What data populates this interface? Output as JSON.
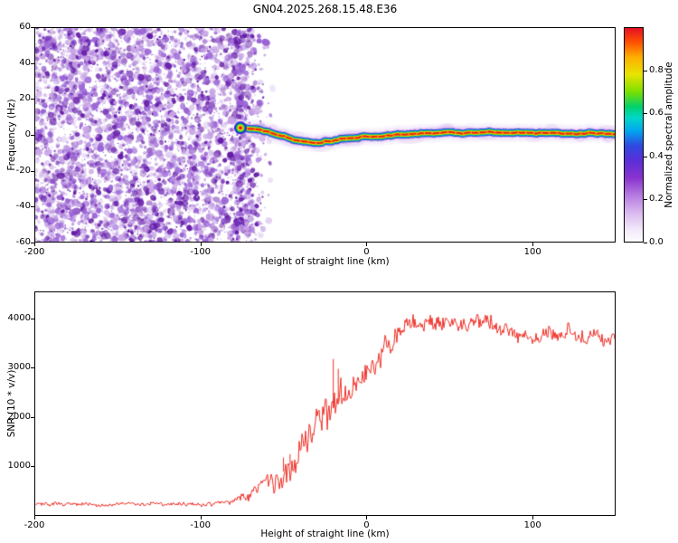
{
  "title": "GN04.2025.268.15.48.E36",
  "chart_data": [
    {
      "type": "heatmap",
      "name": "doppler-spectrogram",
      "title": "GN04.2025.268.15.48.E36",
      "xlabel": "Height of straight line (km)",
      "ylabel": "Frequency (Hz)",
      "xlim": [
        -200,
        150
      ],
      "ylim": [
        -60,
        60
      ],
      "xticks": [
        -200,
        -100,
        0,
        100
      ],
      "yticks": [
        -60,
        -40,
        -20,
        0,
        20,
        40,
        60
      ],
      "grid": false,
      "colorbar": {
        "label": "Normalized spectral amplitude",
        "tick_values": [
          0,
          0.2,
          0.4,
          0.6,
          0.8
        ],
        "tick_labels": [
          "0.0",
          "0.2",
          "0.4",
          "0.6",
          "0.8"
        ],
        "range": [
          0,
          1
        ],
        "stops": [
          [
            0.0,
            "#ffffff"
          ],
          [
            0.06,
            "#f3e9fa"
          ],
          [
            0.14,
            "#d9b8ef"
          ],
          [
            0.22,
            "#b57ae0"
          ],
          [
            0.3,
            "#8a33cf"
          ],
          [
            0.38,
            "#5b2fd8"
          ],
          [
            0.45,
            "#2f4ae0"
          ],
          [
            0.52,
            "#00a8f0"
          ],
          [
            0.58,
            "#00d8c8"
          ],
          [
            0.63,
            "#00d26e"
          ],
          [
            0.7,
            "#7ce000"
          ],
          [
            0.78,
            "#e8e400"
          ],
          [
            0.86,
            "#ffb000"
          ],
          [
            0.93,
            "#ff5000"
          ],
          [
            1.0,
            "#e40c28"
          ]
        ]
      },
      "noise_field": {
        "x_range": [
          -200,
          -78
        ],
        "fade_x_range": [
          -78,
          -56
        ],
        "freq_range": [
          -60,
          60
        ],
        "amplitude_range": [
          0,
          0.35
        ],
        "dots": 4500,
        "fade_dots": 700,
        "dot_colors": [
          "#c9a6e6",
          "#9a63d6",
          "#641ba8"
        ]
      },
      "signal_trace": {
        "x_start": -76,
        "x_end": 150,
        "path": [
          [
            -76,
            4
          ],
          [
            -72,
            3.5
          ],
          [
            -68,
            3.2
          ],
          [
            -64,
            2.6
          ],
          [
            -60,
            1.8
          ],
          [
            -56,
            0.8
          ],
          [
            -52,
            -0.4
          ],
          [
            -48,
            -1.6
          ],
          [
            -44,
            -2.6
          ],
          [
            -40,
            -3.4
          ],
          [
            -36,
            -3.9
          ],
          [
            -32,
            -4
          ],
          [
            -28,
            -3.7
          ],
          [
            -24,
            -3.1
          ],
          [
            -20,
            -2.6
          ],
          [
            -16,
            -2.2
          ],
          [
            -12,
            -2
          ],
          [
            -8,
            -1.8
          ],
          [
            -4,
            -1.5
          ],
          [
            0,
            -1.2
          ],
          [
            4,
            -0.9
          ],
          [
            8,
            -0.6
          ],
          [
            12,
            -0.3
          ],
          [
            16,
            0
          ],
          [
            20,
            0.3
          ],
          [
            25,
            0.6
          ],
          [
            30,
            0.9
          ],
          [
            35,
            1
          ],
          [
            45,
            1.2
          ],
          [
            55,
            1
          ],
          [
            65,
            1.1
          ],
          [
            75,
            1.2
          ],
          [
            85,
            1
          ],
          [
            95,
            1.1
          ],
          [
            105,
            1
          ],
          [
            115,
            1.1
          ],
          [
            125,
            1
          ],
          [
            135,
            1.1
          ],
          [
            150,
            1
          ]
        ],
        "layers": [
          [
            "#ead2f8",
            15,
            0.3
          ],
          [
            "#c08ae8",
            10.5,
            0.5
          ],
          [
            "#2b2bd4",
            8.2,
            0.95
          ],
          [
            "#00a8e8",
            6.6,
            1
          ],
          [
            "#00cc55",
            5.2,
            1
          ],
          [
            "#9ce000",
            4.2,
            1
          ],
          [
            "#ffd800",
            3.3,
            1
          ],
          [
            "#ff8800",
            2.5,
            1
          ],
          [
            "#e61e14",
            1.7,
            1
          ]
        ],
        "halo_color": "#d8bdf2",
        "blob_color": "#c9a2e8",
        "blob_count": 34
      }
    },
    {
      "type": "line",
      "name": "snr-profile",
      "xlabel": "Height of straight line (km)",
      "ylabel": "SNR (10 * v/v)",
      "xlim": [
        -200,
        150
      ],
      "ylim": [
        0,
        4550
      ],
      "xticks": [
        -200,
        -100,
        0,
        100
      ],
      "yticks": [
        1000,
        2000,
        3000,
        4000
      ],
      "grid": false,
      "series": [
        {
          "name": "SNR",
          "color": "#f03028",
          "points": [
            [
              -200,
              240,
              55
            ],
            [
              -180,
              235,
              55
            ],
            [
              -160,
              240,
              55
            ],
            [
              -140,
              235,
              55
            ],
            [
              -120,
              245,
              55
            ],
            [
              -100,
              240,
              60
            ],
            [
              -90,
              235,
              60
            ],
            [
              -82,
              240,
              70
            ],
            [
              -76,
              330,
              160
            ],
            [
              -72,
              290,
              130
            ],
            [
              -68,
              420,
              180
            ],
            [
              -64,
              520,
              220
            ],
            [
              -60,
              600,
              260
            ],
            [
              -56,
              720,
              280
            ],
            [
              -52,
              850,
              320
            ],
            [
              -48,
              950,
              340
            ],
            [
              -44,
              1120,
              360
            ],
            [
              -40,
              1380,
              400
            ],
            [
              -36,
              1560,
              420
            ],
            [
              -32,
              1700,
              440
            ],
            [
              -28,
              1840,
              470
            ],
            [
              -24,
              1980,
              520
            ],
            [
              -20,
              2180,
              520
            ],
            [
              -16,
              2380,
              470
            ],
            [
              -12,
              2520,
              420
            ],
            [
              -8,
              2650,
              380
            ],
            [
              -4,
              2760,
              360
            ],
            [
              0,
              2880,
              360
            ],
            [
              4,
              3060,
              360
            ],
            [
              8,
              3240,
              330
            ],
            [
              12,
              3420,
              320
            ],
            [
              16,
              3620,
              300
            ],
            [
              20,
              3790,
              280
            ],
            [
              24,
              3930,
              260
            ],
            [
              28,
              4010,
              260
            ],
            [
              34,
              4000,
              260
            ],
            [
              40,
              3960,
              260
            ],
            [
              48,
              3900,
              260
            ],
            [
              56,
              3880,
              260
            ],
            [
              64,
              3900,
              260
            ],
            [
              72,
              3860,
              250
            ],
            [
              80,
              3800,
              250
            ],
            [
              88,
              3720,
              230
            ],
            [
              96,
              3740,
              230
            ],
            [
              104,
              3700,
              220
            ],
            [
              112,
              3680,
              220
            ],
            [
              120,
              3700,
              210
            ],
            [
              128,
              3620,
              210
            ],
            [
              136,
              3660,
              200
            ],
            [
              144,
              3600,
              200
            ],
            [
              150,
              3620,
              200
            ]
          ],
          "spikes": [
            [
              -20,
              3180
            ],
            [
              -17,
              2980
            ],
            [
              -50,
              1180
            ],
            [
              -46,
              1250
            ]
          ]
        }
      ]
    }
  ]
}
